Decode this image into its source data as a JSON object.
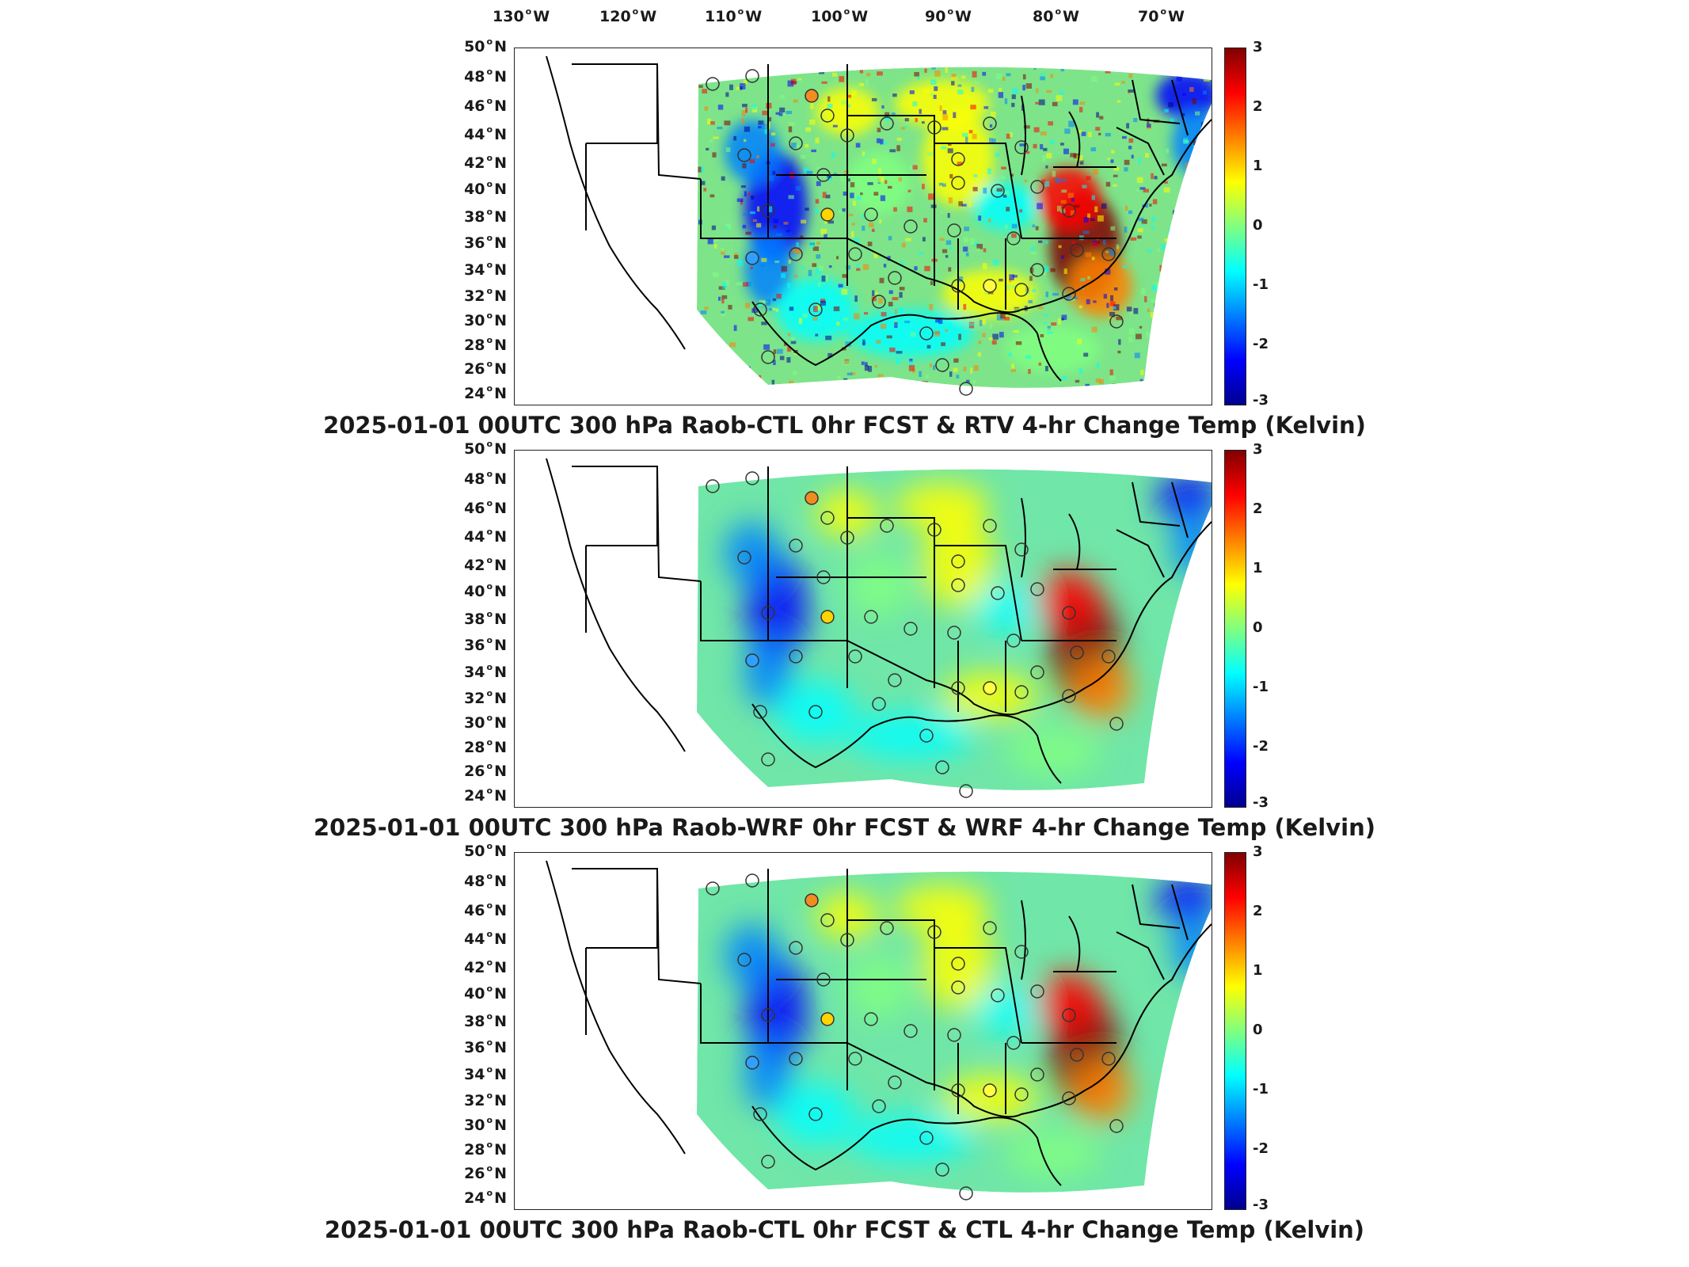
{
  "lon_labels": [
    "130",
    "120",
    "110",
    "100",
    "90",
    "80",
    "70"
  ],
  "lon_suffix": "W",
  "lat_labels": [
    "50",
    "48",
    "46",
    "44",
    "42",
    "40",
    "38",
    "36",
    "34",
    "32",
    "30",
    "28",
    "26",
    "24"
  ],
  "lat_suffix": "N",
  "colorbar": {
    "ticks": [
      "3",
      "2",
      "1",
      "0",
      "-1",
      "-2",
      "-3"
    ],
    "colors": [
      "#00008f",
      "#0000ff",
      "#0080ff",
      "#00ffff",
      "#80ff80",
      "#ffff00",
      "#ff8000",
      "#ff0000",
      "#800000"
    ]
  },
  "panels": [
    {
      "title": "2025-01-01 00UTC 300 hPa Raob-CTL 0hr FCST & RTV 4-hr Change Temp (Kelvin)"
    },
    {
      "title": "2025-01-01 00UTC 300 hPa Raob-WRF 0hr FCST & WRF 4-hr Change Temp (Kelvin)"
    },
    {
      "title": "2025-01-01 00UTC 300 hPa Raob-CTL 0hr FCST & CTL 4-hr Change Temp (Kelvin)"
    }
  ],
  "stations_fill": [
    "#f08c20",
    "#ffd400",
    "#ffd400",
    "#ffff40",
    "#30a0ff"
  ]
}
